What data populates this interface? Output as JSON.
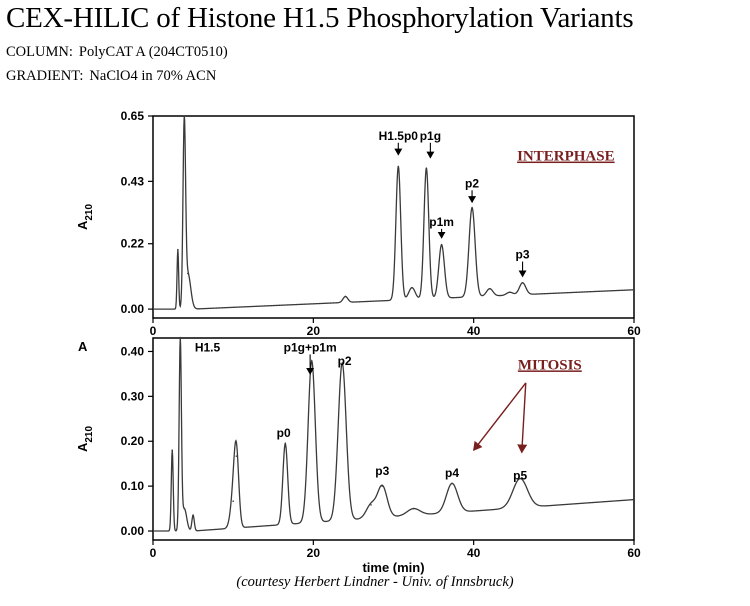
{
  "header": {
    "title": "CEX-HILIC of Histone H1.5 Phosphorylation Variants",
    "column_key": "COLUMN:",
    "column_value": "PolyCAT A (204CT0510)",
    "gradient_key": "GRADIENT:",
    "gradient_value": "NaClO4 in 70% ACN"
  },
  "footer": {
    "credit": "(courtesy Herbert Lindner - Univ. of Innsbruck)"
  },
  "colors": {
    "trace": "#3a3a3a",
    "axis": "#000000",
    "phase_label": "#7a1f1f",
    "phase_arrow": "#7a1f1f"
  },
  "chart_data": [
    {
      "type": "line",
      "panel": "interphase",
      "annotation": "INTERPHASE",
      "ylabel_main": "A",
      "ylabel_sub": "210",
      "xlabel": "",
      "xlim": [
        0,
        60
      ],
      "ylim": [
        -0.03,
        0.65
      ],
      "xticks": [
        "0",
        "20",
        "40",
        "60"
      ],
      "xtick_values": [
        0,
        20,
        40,
        60
      ],
      "yticks": [
        "0.65",
        "0.43",
        "0.22",
        "0.00"
      ],
      "ytick_values": [
        0.65,
        0.43,
        0.22,
        0.0
      ],
      "baseline": 0.0,
      "drift_end": 0.065,
      "peaks": [
        {
          "rt": 3.1,
          "height": 0.2,
          "width": 0.1
        },
        {
          "rt": 3.9,
          "height": 0.6,
          "width": 0.16
        },
        {
          "rt": 4.35,
          "height": 0.12,
          "width": 0.35
        },
        {
          "rt": 24.0,
          "height": 0.02,
          "width": 0.3
        },
        {
          "rt": 30.6,
          "height": 0.45,
          "width": 0.3
        },
        {
          "rt": 32.3,
          "height": 0.04,
          "width": 0.4
        },
        {
          "rt": 34.1,
          "height": 0.44,
          "width": 0.3
        },
        {
          "rt": 36.0,
          "height": 0.18,
          "width": 0.35
        },
        {
          "rt": 39.8,
          "height": 0.3,
          "width": 0.38
        },
        {
          "rt": 42.0,
          "height": 0.025,
          "width": 0.4
        },
        {
          "rt": 44.5,
          "height": 0.01,
          "width": 0.4
        },
        {
          "rt": 46.1,
          "height": 0.04,
          "width": 0.4
        }
      ],
      "labels": [
        {
          "text": "H1.5p0",
          "rt": 30.6,
          "y": 0.57,
          "arrow_to": 0.52
        },
        {
          "text": "p1g",
          "rt": 34.6,
          "y": 0.57,
          "arrow_to": 0.51
        },
        {
          "text": "p1m",
          "rt": 36.0,
          "y": 0.28,
          "arrow_to": 0.24
        },
        {
          "text": "p2",
          "rt": 39.8,
          "y": 0.41,
          "arrow_to": 0.36
        },
        {
          "text": "p3",
          "rt": 46.1,
          "y": 0.17,
          "arrow_to": 0.11
        }
      ]
    },
    {
      "type": "line",
      "panel": "mitosis",
      "annotation": "MITOSIS",
      "corner_label": "A",
      "ylabel_main": "A",
      "ylabel_sub": "210",
      "xlabel": "time (min)",
      "xlim": [
        0,
        60
      ],
      "ylim": [
        -0.02,
        0.43
      ],
      "xticks": [
        "0",
        "20",
        "40",
        "60"
      ],
      "xtick_values": [
        0,
        20,
        40,
        60
      ],
      "yticks": [
        "0.40",
        "0.30",
        "0.20",
        "0.10",
        "0.00"
      ],
      "ytick_values": [
        0.4,
        0.3,
        0.2,
        0.1,
        0.0
      ],
      "baseline": 0.0,
      "drift_end": 0.07,
      "peaks": [
        {
          "rt": 2.4,
          "height": 0.18,
          "width": 0.12
        },
        {
          "rt": 3.4,
          "height": 0.42,
          "width": 0.14
        },
        {
          "rt": 3.9,
          "height": 0.05,
          "width": 0.3
        },
        {
          "rt": 5.0,
          "height": 0.035,
          "width": 0.15
        },
        {
          "rt": 10.0,
          "height": 0.06,
          "width": 0.35
        },
        {
          "rt": 10.4,
          "height": 0.16,
          "width": 0.3
        },
        {
          "rt": 16.5,
          "height": 0.18,
          "width": 0.3
        },
        {
          "rt": 19.8,
          "height": 0.36,
          "width": 0.45
        },
        {
          "rt": 23.6,
          "height": 0.35,
          "width": 0.5
        },
        {
          "rt": 27.2,
          "height": 0.03,
          "width": 0.6
        },
        {
          "rt": 28.6,
          "height": 0.07,
          "width": 0.6
        },
        {
          "rt": 32.5,
          "height": 0.015,
          "width": 0.8
        },
        {
          "rt": 37.3,
          "height": 0.065,
          "width": 0.7
        },
        {
          "rt": 45.8,
          "height": 0.065,
          "width": 0.9
        }
      ],
      "labels": [
        {
          "text": "H1.5",
          "rt": 6.8,
          "y": 0.4
        },
        {
          "text": "p0",
          "rt": 16.3,
          "y": 0.21
        },
        {
          "text": "p1g+p1m",
          "rt": 19.6,
          "y": 0.4,
          "arrow_to": 0.35
        },
        {
          "text": "p2",
          "rt": 23.9,
          "y": 0.37
        },
        {
          "text": "p3",
          "rt": 28.6,
          "y": 0.125
        },
        {
          "text": "p4",
          "rt": 37.3,
          "y": 0.12
        },
        {
          "text": "p5",
          "rt": 45.8,
          "y": 0.115
        }
      ],
      "annotation_arrows": [
        {
          "from_rt": 46.5,
          "from_y": 0.33,
          "to_rt": 40.0,
          "to_y": 0.18
        },
        {
          "from_rt": 46.5,
          "from_y": 0.33,
          "to_rt": 46.0,
          "to_y": 0.175
        }
      ]
    }
  ]
}
